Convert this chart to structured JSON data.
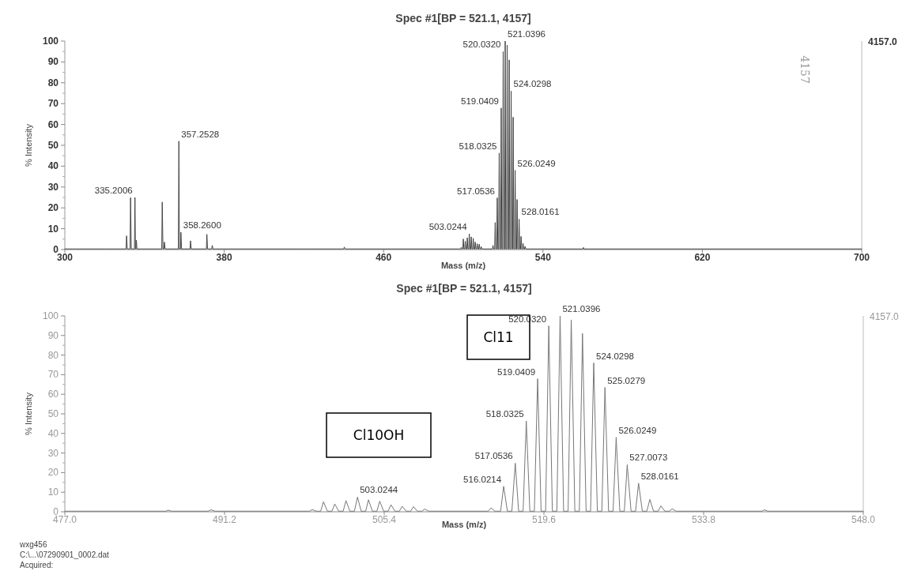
{
  "chart_data": [
    {
      "type": "line",
      "title": "Spec #1[BP = 521.1, 4157]",
      "xlabel": "Mass (m/z)",
      "ylabel": "% Intensity",
      "xlim": [
        300,
        700
      ],
      "xticks": [
        300,
        380,
        460,
        540,
        620,
        700
      ],
      "ylim": [
        0,
        100
      ],
      "yticks": [
        0,
        10,
        20,
        30,
        40,
        50,
        60,
        70,
        80,
        90,
        100
      ],
      "grid": false,
      "legend": false,
      "marker": "none",
      "line_style": "solid",
      "series": [
        {
          "color": "#444444",
          "x": [
            300,
            320,
            330.75,
            331.0,
            331.35,
            332.75,
            333.0,
            333.35,
            334.95,
            335.2006,
            335.45,
            335.7,
            335.9,
            336.2,
            348.65,
            348.9,
            349.25,
            349.75,
            350.0,
            350.35,
            357.0,
            357.2528,
            357.5,
            358.05,
            358.26,
            358.6,
            362.85,
            363.1,
            363.45,
            371.05,
            371.3,
            371.65,
            373.75,
            374.0,
            374.35,
            420,
            440,
            440.3,
            440.6,
            498.75,
            499.0,
            499.35,
            499.75,
            500.0,
            500.35,
            500.75,
            501.0,
            501.35,
            501.75,
            502.0,
            502.35,
            502.75,
            503.0244,
            503.35,
            503.75,
            504.0,
            504.35,
            504.75,
            505.0,
            505.35,
            505.75,
            506.0,
            506.35,
            506.75,
            507.0,
            507.35,
            507.75,
            508.0,
            508.35,
            508.75,
            509.0,
            509.35,
            514.65,
            514.9,
            515.25,
            515.75,
            516.0214,
            516.35,
            516.75,
            517.0536,
            517.35,
            517.75,
            518.0325,
            518.35,
            518.75,
            519.0409,
            519.35,
            519.75,
            520.032,
            520.35,
            520.75,
            521.0396,
            521.35,
            521.75,
            522.03,
            522.35,
            522.75,
            523.03,
            523.35,
            523.75,
            524.0298,
            524.35,
            524.75,
            525.0279,
            525.35,
            525.75,
            526.0249,
            526.35,
            526.75,
            527.0073,
            527.35,
            527.75,
            528.0161,
            528.35,
            528.75,
            529.02,
            529.35,
            529.75,
            530.0,
            530.35,
            530.75,
            531.0,
            531.35,
            560,
            560.3,
            560.6,
            600,
            700
          ],
          "values": [
            0.3,
            0.3,
            0.3,
            6.6,
            0.3,
            0.3,
            24.9,
            0.3,
            0.3,
            25,
            0.3,
            0.3,
            4.5,
            0.3,
            0.3,
            22.8,
            0.3,
            0.3,
            3.6,
            0.3,
            0.3,
            52,
            0.3,
            0.3,
            8.3,
            0.3,
            0.3,
            4.2,
            0.3,
            0.3,
            7.3,
            0.3,
            0.3,
            2,
            0.3,
            0.3,
            0.3,
            1.2,
            0.3,
            0.3,
            1.1,
            0.3,
            0.3,
            5.1,
            0.3,
            0.3,
            4,
            0.3,
            0.3,
            5.7,
            0.3,
            0.3,
            7.5,
            0.3,
            0.3,
            6.1,
            0.3,
            0.3,
            5.4,
            0.3,
            0.3,
            3.6,
            0.3,
            0.3,
            2.8,
            0.3,
            0.3,
            2.6,
            0.3,
            0.3,
            1.4,
            0.3,
            0.3,
            2,
            0.3,
            0.3,
            13,
            0.3,
            0.3,
            24.8,
            0.3,
            0.3,
            46.3,
            0.3,
            0.3,
            67.9,
            0.3,
            0.3,
            94.9,
            0.3,
            0.3,
            100,
            0.3,
            0.3,
            98,
            0.3,
            0.3,
            91,
            0.3,
            0.3,
            76,
            0.3,
            0.3,
            63.5,
            0.3,
            0.3,
            38,
            0.3,
            0.3,
            24,
            0.3,
            0.3,
            14.6,
            0.3,
            0.3,
            6.3,
            0.3,
            0.3,
            3,
            0.3,
            0.3,
            1.5,
            0.3,
            0.3,
            1,
            0.3,
            0.3,
            0.3
          ]
        }
      ],
      "annotations": [
        {
          "text": "335.2006",
          "x": 335.2006,
          "y": 25
        },
        {
          "text": "357.2528",
          "x": 357.2528,
          "y": 52
        },
        {
          "text": "358.2600",
          "x": 358.26,
          "y": 8.3
        },
        {
          "text": "503.0244",
          "x": 503.0244,
          "y": 7.5
        },
        {
          "text": "517.0536",
          "x": 517.0536,
          "y": 24.8
        },
        {
          "text": "518.0325",
          "x": 518.0325,
          "y": 46.3
        },
        {
          "text": "519.0409",
          "x": 519.0409,
          "y": 67.9
        },
        {
          "text": "520.0320",
          "x": 520.032,
          "y": 94.9
        },
        {
          "text": "521.0396",
          "x": 521.0396,
          "y": 100
        },
        {
          "text": "524.0298",
          "x": 524.0298,
          "y": 76
        },
        {
          "text": "526.0249",
          "x": 526.0249,
          "y": 38
        },
        {
          "text": "528.0161",
          "x": 528.0161,
          "y": 14.6
        },
        "4157.0",
        "4157"
      ]
    },
    {
      "type": "line",
      "title": "Spec #1[BP = 521.1, 4157]",
      "xlabel": "Mass (m/z)",
      "ylabel": "% Intensity",
      "xlim": [
        477,
        548
      ],
      "xticks": [
        {
          "value": 477,
          "label": "477.0"
        },
        491.2,
        505.4,
        519.6,
        533.8,
        {
          "value": 548,
          "label": "548.0"
        }
      ],
      "ylim": [
        0,
        100
      ],
      "yticks": [
        0,
        10,
        20,
        30,
        40,
        50,
        60,
        70,
        80,
        90,
        100
      ],
      "grid": false,
      "legend": false,
      "marker": "none",
      "line_style": "solid",
      "series": [
        {
          "color": "#777777",
          "x": [
            477,
            486,
            486.2,
            486.5,
            489.75,
            490.0,
            490.35,
            498.75,
            499.0,
            499.35,
            499.75,
            500.0,
            500.35,
            500.75,
            501.0,
            501.35,
            501.75,
            502.0,
            502.35,
            502.75,
            503.0244,
            503.35,
            503.75,
            504.0,
            504.35,
            504.75,
            505.0,
            505.35,
            505.75,
            506.0,
            506.35,
            506.75,
            507.0,
            507.35,
            507.75,
            508.0,
            508.35,
            508.75,
            509.0,
            509.35,
            514.65,
            514.9,
            515.25,
            515.75,
            516.0214,
            516.35,
            516.75,
            517.0536,
            517.35,
            517.75,
            518.0325,
            518.35,
            518.75,
            519.0409,
            519.35,
            519.75,
            520.032,
            520.35,
            520.75,
            521.0396,
            521.35,
            521.75,
            522.03,
            522.35,
            522.75,
            523.03,
            523.35,
            523.75,
            524.0298,
            524.35,
            524.75,
            525.0279,
            525.35,
            525.75,
            526.0249,
            526.35,
            526.75,
            527.0073,
            527.35,
            527.75,
            528.0161,
            528.35,
            528.75,
            529.02,
            529.35,
            529.75,
            530.0,
            530.35,
            530.75,
            531.0,
            531.35,
            539,
            539.2,
            539.5,
            548
          ],
          "values": [
            0.3,
            0.3,
            0.8,
            0.3,
            0.3,
            1,
            0.3,
            0.3,
            1.1,
            0.3,
            0.3,
            5.1,
            0.3,
            0.3,
            4,
            0.3,
            0.3,
            5.7,
            0.3,
            0.3,
            7.5,
            0.3,
            0.3,
            6.1,
            0.3,
            0.3,
            5.4,
            0.3,
            0.3,
            3.6,
            0.3,
            0.3,
            2.8,
            0.3,
            0.3,
            2.6,
            0.3,
            0.3,
            1.4,
            0.3,
            0.3,
            2,
            0.3,
            0.3,
            13,
            0.3,
            0.3,
            24.8,
            0.3,
            0.3,
            46.3,
            0.3,
            0.3,
            67.9,
            0.3,
            0.3,
            94.9,
            0.3,
            0.3,
            100,
            0.3,
            0.3,
            98,
            0.3,
            0.3,
            91,
            0.3,
            0.3,
            76,
            0.3,
            0.3,
            63.5,
            0.3,
            0.3,
            38,
            0.3,
            0.3,
            24,
            0.3,
            0.3,
            14.6,
            0.3,
            0.3,
            6.3,
            0.3,
            0.3,
            3,
            0.3,
            0.3,
            1.5,
            0.3,
            0.3,
            1,
            0.3,
            0.3
          ]
        }
      ],
      "annotations": [
        {
          "text": "503.0244",
          "x": 503.0244,
          "y": 7.5
        },
        {
          "text": "516.0214",
          "x": 516.0214,
          "y": 13
        },
        {
          "text": "517.0536",
          "x": 517.0536,
          "y": 24.8
        },
        {
          "text": "518.0325",
          "x": 518.0325,
          "y": 46.3
        },
        {
          "text": "519.0409",
          "x": 519.0409,
          "y": 67.9
        },
        {
          "text": "520.0320",
          "x": 520.032,
          "y": 94.9
        },
        {
          "text": "521.0396",
          "x": 521.0396,
          "y": 100
        },
        {
          "text": "524.0298",
          "x": 524.0298,
          "y": 76
        },
        {
          "text": "525.0279",
          "x": 525.0279,
          "y": 63.5
        },
        {
          "text": "526.0249",
          "x": 526.0249,
          "y": 38
        },
        {
          "text": "527.0073",
          "x": 527.0073,
          "y": 24
        },
        {
          "text": "528.0161",
          "x": 528.0161,
          "y": 14.6
        },
        "4157.0",
        "Cl11",
        "Cl10OH",
        "wxg456",
        "C:\\...\\07290901_0002.dat",
        "Acquired:"
      ]
    }
  ]
}
